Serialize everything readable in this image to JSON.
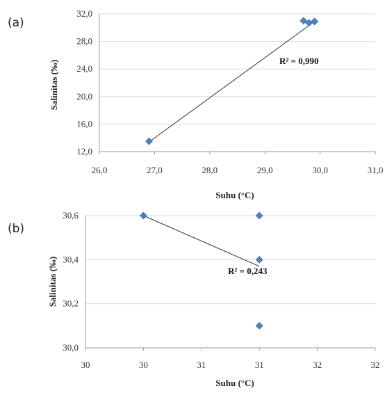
{
  "chart_data": [
    {
      "type": "scatter",
      "panel_label": "(a)",
      "title": "",
      "xlabel": "Suhu (°C)",
      "ylabel": "Salinitas (‰)",
      "xlim": [
        26.0,
        31.0
      ],
      "ylim": [
        12.0,
        32.0
      ],
      "x_ticks": [
        "26,0",
        "27,0",
        "28,0",
        "29,0",
        "30,0",
        "31,0"
      ],
      "y_ticks": [
        "12,0",
        "16,0",
        "20,0",
        "24,0",
        "28,0",
        "32,0"
      ],
      "grid": "horizontal",
      "points": [
        {
          "x": 26.9,
          "y": 13.5
        },
        {
          "x": 29.7,
          "y": 31.0
        },
        {
          "x": 29.8,
          "y": 30.7
        },
        {
          "x": 29.9,
          "y": 30.9
        }
      ],
      "trendline": {
        "x": [
          26.9,
          29.9
        ],
        "y": [
          13.4,
          30.9
        ]
      },
      "annotation": "R² = 0,990",
      "colors": {
        "marker": "#4f81bd"
      }
    },
    {
      "type": "scatter",
      "panel_label": "(b)",
      "title": "",
      "xlabel": "Suhu (°C)",
      "ylabel": "Salinitas (‰)",
      "xlim": [
        29.5,
        32.0
      ],
      "ylim": [
        30.0,
        30.6
      ],
      "x_ticks": [
        "30",
        "30",
        "31",
        "31",
        "32",
        "32"
      ],
      "y_ticks": [
        "30,0",
        "30,2",
        "30,4",
        "30,6"
      ],
      "grid": "horizontal",
      "points": [
        {
          "x": 30.0,
          "y": 30.6
        },
        {
          "x": 31.0,
          "y": 30.6
        },
        {
          "x": 31.0,
          "y": 30.4
        },
        {
          "x": 31.0,
          "y": 30.1
        }
      ],
      "trendline": {
        "x": [
          30.0,
          31.0
        ],
        "y": [
          30.6,
          30.37
        ]
      },
      "annotation": "R² = 0,243",
      "colors": {
        "marker": "#4f81bd"
      }
    }
  ]
}
